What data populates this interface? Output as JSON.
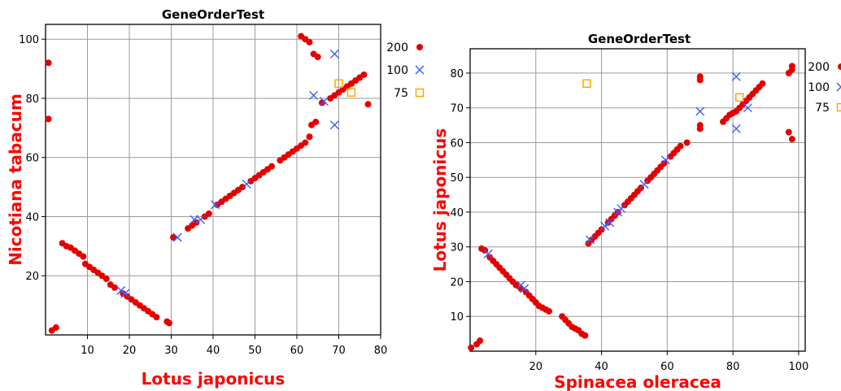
{
  "chart_data": [
    {
      "type": "scatter",
      "title": "GeneOrderTest",
      "xlabel": "Lotus japonicus",
      "ylabel": "Nicotiana tabacum",
      "xlim": [
        0,
        80
      ],
      "ylim": [
        0,
        105
      ],
      "xticks": [
        10,
        20,
        30,
        40,
        50,
        60,
        70,
        80
      ],
      "yticks": [
        20,
        40,
        60,
        80,
        100
      ],
      "grid": true,
      "legend_position": "right",
      "colors": {
        "label": "#ff0000",
        "s200": "#e50000",
        "s100": "#3a5cff",
        "s75": "#ffa500"
      },
      "series": [
        {
          "name": "200",
          "marker": "dot",
          "points": [
            [
              0.7,
              92
            ],
            [
              0.7,
              73
            ],
            [
              1.5,
              1.5
            ],
            [
              2.5,
              2.5
            ],
            [
              4,
              31
            ],
            [
              5,
              30
            ],
            [
              6,
              29.5
            ],
            [
              7,
              28.5
            ],
            [
              8,
              27.5
            ],
            [
              9,
              26.5
            ],
            [
              9.5,
              24
            ],
            [
              10.5,
              23
            ],
            [
              11.5,
              22
            ],
            [
              12.5,
              21
            ],
            [
              13.5,
              20
            ],
            [
              14.5,
              19
            ],
            [
              15.5,
              17
            ],
            [
              16.5,
              16
            ],
            [
              18.5,
              14
            ],
            [
              19.5,
              13
            ],
            [
              20.5,
              12
            ],
            [
              21.5,
              11
            ],
            [
              22.5,
              10
            ],
            [
              23.5,
              9
            ],
            [
              24.5,
              8
            ],
            [
              25.5,
              7
            ],
            [
              26.5,
              6
            ],
            [
              29,
              4.5
            ],
            [
              29.5,
              4
            ],
            [
              30.5,
              33
            ],
            [
              34,
              36
            ],
            [
              35,
              37
            ],
            [
              36,
              38
            ],
            [
              38,
              40
            ],
            [
              39,
              41
            ],
            [
              41,
              44
            ],
            [
              42,
              45
            ],
            [
              43,
              46
            ],
            [
              44,
              47
            ],
            [
              45,
              48
            ],
            [
              46,
              49
            ],
            [
              47,
              50
            ],
            [
              49,
              52
            ],
            [
              50,
              53
            ],
            [
              51,
              54
            ],
            [
              52,
              55
            ],
            [
              53,
              56
            ],
            [
              54,
              57
            ],
            [
              56,
              59
            ],
            [
              57,
              60
            ],
            [
              58,
              61
            ],
            [
              59,
              62
            ],
            [
              60,
              63
            ],
            [
              61,
              64
            ],
            [
              62,
              65
            ],
            [
              63,
              67
            ],
            [
              63.5,
              71
            ],
            [
              64.5,
              72
            ],
            [
              61,
              101
            ],
            [
              62,
              100
            ],
            [
              63,
              99
            ],
            [
              64,
              95
            ],
            [
              65,
              94
            ],
            [
              66,
              78.5
            ],
            [
              68,
              80
            ],
            [
              69,
              81
            ],
            [
              70,
              82
            ],
            [
              71,
              83
            ],
            [
              72,
              84
            ],
            [
              73,
              85
            ],
            [
              74,
              86
            ],
            [
              75,
              87
            ],
            [
              76,
              88
            ],
            [
              77,
              78
            ]
          ]
        },
        {
          "name": "100",
          "marker": "x",
          "points": [
            [
              31.5,
              33
            ],
            [
              35.5,
              39
            ],
            [
              37,
              39
            ],
            [
              40.5,
              44
            ],
            [
              48,
              51
            ],
            [
              64,
              81
            ],
            [
              66.5,
              79
            ],
            [
              69,
              95
            ],
            [
              69,
              71
            ],
            [
              18,
              15
            ],
            [
              19,
              14
            ]
          ]
        },
        {
          "name": "75",
          "marker": "square",
          "points": [
            [
              70,
              85
            ],
            [
              73,
              82
            ]
          ]
        }
      ]
    },
    {
      "type": "scatter",
      "title": "GeneOrderTest",
      "xlabel": "Spinacea oleracea",
      "ylabel": "Lotus japonicus",
      "xlim": [
        0,
        102
      ],
      "ylim": [
        0,
        87
      ],
      "xticks": [
        20,
        40,
        60,
        80,
        100
      ],
      "yticks": [
        10,
        20,
        30,
        40,
        50,
        60,
        70,
        80
      ],
      "grid": true,
      "legend_position": "right",
      "colors": {
        "label": "#ff0000",
        "s200": "#e50000",
        "s100": "#3a5cff",
        "s75": "#ffa500"
      },
      "series": [
        {
          "name": "200",
          "marker": "dot",
          "points": [
            [
              0.3,
              1
            ],
            [
              2,
              2
            ],
            [
              3,
              3
            ],
            [
              3.5,
              29.5
            ],
            [
              4.5,
              29
            ],
            [
              6,
              27
            ],
            [
              7,
              26
            ],
            [
              8,
              25
            ],
            [
              9,
              24
            ],
            [
              10,
              23
            ],
            [
              11,
              22
            ],
            [
              12,
              21
            ],
            [
              13,
              20
            ],
            [
              14,
              19
            ],
            [
              15.5,
              18
            ],
            [
              17,
              17
            ],
            [
              18,
              16
            ],
            [
              19,
              15
            ],
            [
              20,
              14
            ],
            [
              21,
              13
            ],
            [
              22,
              12.5
            ],
            [
              23,
              12
            ],
            [
              24,
              11.5
            ],
            [
              28,
              10
            ],
            [
              29,
              9
            ],
            [
              30,
              8
            ],
            [
              31,
              7
            ],
            [
              32,
              6.5
            ],
            [
              33,
              6
            ],
            [
              34,
              5
            ],
            [
              35,
              4.5
            ],
            [
              36,
              31
            ],
            [
              37,
              32
            ],
            [
              38,
              33
            ],
            [
              39,
              34
            ],
            [
              40,
              35
            ],
            [
              42,
              37
            ],
            [
              43,
              38
            ],
            [
              44,
              39
            ],
            [
              45,
              40
            ],
            [
              47,
              42
            ],
            [
              48,
              43
            ],
            [
              49,
              44
            ],
            [
              50,
              45
            ],
            [
              51,
              46
            ],
            [
              52,
              47
            ],
            [
              54,
              49
            ],
            [
              55,
              50
            ],
            [
              56,
              51
            ],
            [
              57,
              52
            ],
            [
              58,
              53
            ],
            [
              59,
              54
            ],
            [
              61,
              56
            ],
            [
              62,
              57
            ],
            [
              63,
              58
            ],
            [
              64,
              59
            ],
            [
              66,
              60
            ],
            [
              70,
              64
            ],
            [
              70,
              65
            ],
            [
              70,
              78
            ],
            [
              70,
              79
            ],
            [
              77,
              66
            ],
            [
              78,
              67
            ],
            [
              79,
              68
            ],
            [
              80,
              68.5
            ],
            [
              81,
              69
            ],
            [
              82,
              70
            ],
            [
              83,
              71
            ],
            [
              84,
              72
            ],
            [
              85,
              73
            ],
            [
              86,
              74
            ],
            [
              87,
              75
            ],
            [
              88,
              76
            ],
            [
              89,
              77
            ],
            [
              97,
              80
            ],
            [
              98,
              81
            ],
            [
              98,
              82
            ],
            [
              97,
              63
            ],
            [
              98,
              61
            ]
          ]
        },
        {
          "name": "100",
          "marker": "x",
          "points": [
            [
              5.5,
              28
            ],
            [
              15.5,
              19
            ],
            [
              16.5,
              18
            ],
            [
              36.5,
              32
            ],
            [
              41,
              36
            ],
            [
              42.5,
              37
            ],
            [
              45,
              40
            ],
            [
              46,
              41
            ],
            [
              53,
              48
            ],
            [
              59.5,
              55
            ],
            [
              70,
              69
            ],
            [
              81,
              79
            ],
            [
              81,
              64
            ],
            [
              84.5,
              70
            ]
          ]
        },
        {
          "name": "75",
          "marker": "square",
          "points": [
            [
              35.5,
              77
            ],
            [
              82,
              73
            ]
          ]
        }
      ]
    }
  ]
}
